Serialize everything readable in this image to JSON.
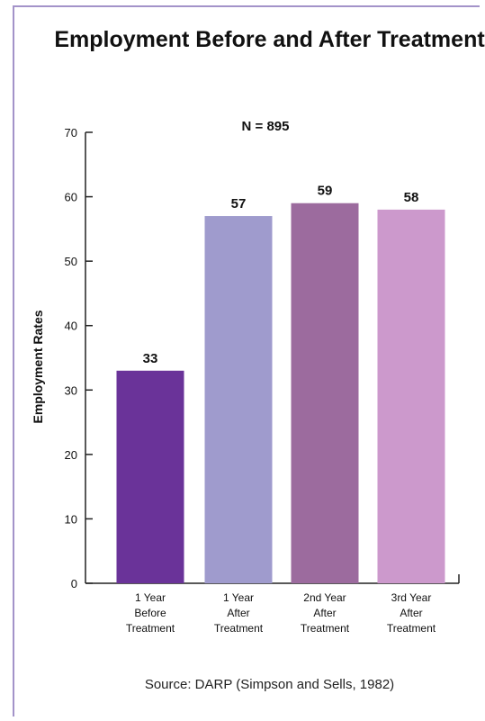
{
  "chart_data": {
    "type": "bar",
    "title": "Employment Before and After Treatment",
    "subtitle": "N = 895",
    "ylabel": "Employment Rates",
    "xlabel": "",
    "ylim": [
      0,
      70
    ],
    "yticks": [
      0,
      10,
      20,
      30,
      40,
      50,
      60,
      70
    ],
    "grid": false,
    "categories": [
      [
        "1 Year",
        "Before",
        "Treatment"
      ],
      [
        "1 Year",
        "After",
        "Treatment"
      ],
      [
        "2nd Year",
        "After",
        "Treatment"
      ],
      [
        "3rd Year",
        "After",
        "Treatment"
      ]
    ],
    "values": [
      33,
      57,
      59,
      58
    ],
    "colors": [
      "#6a3399",
      "#9f9bcd",
      "#9c6b9e",
      "#cc99cc"
    ]
  },
  "source": "Source:  DARP (Simpson and Sells, 1982)"
}
